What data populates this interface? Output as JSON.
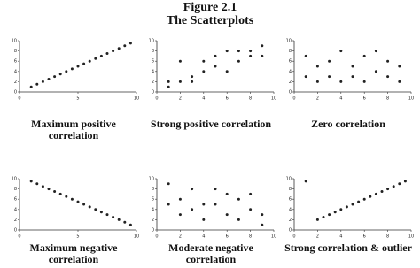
{
  "figure": {
    "title": "Figure 2.1",
    "subtitle": "The Scatterplots"
  },
  "chart_data": [
    {
      "type": "scatter",
      "title": "Maximum positive correlation",
      "color": "#222",
      "x": [
        1,
        1.5,
        2,
        2.5,
        3,
        3.5,
        4,
        4.5,
        5,
        5.5,
        6,
        6.5,
        7,
        7.5,
        8,
        8.5,
        9,
        9.5
      ],
      "values": [
        1,
        1.5,
        2,
        2.5,
        3,
        3.5,
        4,
        4.5,
        5,
        5.5,
        6,
        6.5,
        7,
        7.5,
        8,
        8.5,
        9,
        9.5
      ],
      "xlim": [
        0,
        10
      ],
      "ylim": [
        0,
        10
      ],
      "xticks": [
        0,
        5,
        10
      ],
      "yticks": [
        0,
        2,
        4,
        6,
        8,
        10
      ]
    },
    {
      "type": "scatter",
      "title": "Strong positive correlation",
      "color": "#222",
      "x": [
        1,
        1,
        2,
        2,
        3,
        3,
        4,
        4,
        5,
        5,
        6,
        6,
        7,
        7,
        8,
        8,
        9,
        9
      ],
      "values": [
        1,
        2,
        2,
        6,
        2,
        3,
        4,
        6,
        5,
        7,
        4,
        8,
        6,
        8,
        7,
        8,
        9,
        7
      ],
      "xlim": [
        0,
        10
      ],
      "ylim": [
        0,
        10
      ],
      "xticks": [
        0,
        2,
        4,
        6,
        8,
        10
      ],
      "yticks": [
        0,
        2,
        4,
        6,
        8,
        10
      ]
    },
    {
      "type": "scatter",
      "title": "Zero correlation",
      "color": "#222",
      "x": [
        1,
        1,
        2,
        2,
        3,
        3,
        4,
        4,
        5,
        5,
        6,
        6,
        7,
        7,
        8,
        8,
        9,
        9
      ],
      "values": [
        7,
        3,
        5,
        2,
        6,
        3,
        8,
        2,
        5,
        3,
        7,
        2,
        8,
        4,
        3,
        6,
        5,
        2
      ],
      "xlim": [
        0,
        10
      ],
      "ylim": [
        0,
        10
      ],
      "xticks": [
        0,
        2,
        4,
        6,
        8,
        10
      ],
      "yticks": [
        0,
        2,
        4,
        6,
        8,
        10
      ]
    },
    {
      "type": "scatter",
      "title": "Maximum negative correlation",
      "color": "#222",
      "x": [
        1,
        1.5,
        2,
        2.5,
        3,
        3.5,
        4,
        4.5,
        5,
        5.5,
        6,
        6.5,
        7,
        7.5,
        8,
        8.5,
        9,
        9.5
      ],
      "values": [
        9.5,
        9,
        8.5,
        8,
        7.5,
        7,
        6.5,
        6,
        5.5,
        5,
        4.5,
        4,
        3.5,
        3,
        2.5,
        2,
        1.5,
        1
      ],
      "xlim": [
        0,
        10
      ],
      "ylim": [
        0,
        10
      ],
      "xticks": [
        0,
        5,
        10
      ],
      "yticks": [
        0,
        2,
        4,
        6,
        8,
        10
      ]
    },
    {
      "type": "scatter",
      "title": "Moderate negative correlation",
      "color": "#222",
      "x": [
        1,
        1,
        2,
        2,
        3,
        3,
        4,
        4,
        5,
        5,
        6,
        6,
        7,
        7,
        8,
        8,
        9,
        9
      ],
      "values": [
        9,
        5,
        6,
        3,
        8,
        4,
        5,
        2,
        8,
        5,
        7,
        3,
        6,
        2,
        4,
        7,
        3,
        1
      ],
      "xlim": [
        0,
        10
      ],
      "ylim": [
        0,
        10
      ],
      "xticks": [
        0,
        2,
        4,
        6,
        8,
        10
      ],
      "yticks": [
        0,
        2,
        4,
        6,
        8,
        10
      ]
    },
    {
      "type": "scatter",
      "title": "Strong correlation & outlier",
      "color": "#222",
      "x": [
        1,
        2,
        2.5,
        3,
        3.5,
        4,
        4.5,
        5,
        5.5,
        6,
        6.5,
        7,
        7.5,
        8,
        8.5,
        9,
        9.5
      ],
      "values": [
        9.5,
        2,
        2.5,
        3,
        3.5,
        4,
        4.5,
        5,
        5.5,
        6,
        6.5,
        7,
        7.5,
        8,
        8.5,
        9,
        9.5
      ],
      "xlim": [
        0,
        10
      ],
      "ylim": [
        0,
        10
      ],
      "xticks": [
        0,
        2,
        4,
        6,
        8,
        10
      ],
      "yticks": [
        0,
        2,
        4,
        6,
        8,
        10
      ]
    }
  ]
}
